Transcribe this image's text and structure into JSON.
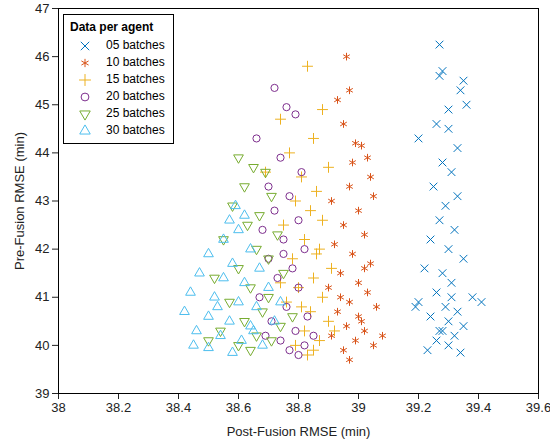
{
  "chart_data": {
    "type": "scatter",
    "x_label": "Post-Fusion RMSE (min)",
    "y_label": "Pre-Fusion RMSE (min)",
    "xlim": [
      38,
      39.6
    ],
    "xticks": [
      38,
      38.2,
      38.4,
      38.6,
      38.8,
      39,
      39.2,
      39.4,
      39.6
    ],
    "ylim": [
      39,
      47
    ],
    "yticks": [
      39,
      40,
      41,
      42,
      43,
      44,
      45,
      46,
      47
    ],
    "grid": false,
    "legend": "top-left",
    "legend_title": "Data per agent",
    "series": [
      {
        "name": "05 batches",
        "color": "#0072BD",
        "marker": "x",
        "values": [
          [
            39.27,
            46.25
          ],
          [
            39.28,
            45.7
          ],
          [
            39.27,
            45.6
          ],
          [
            39.35,
            45.5
          ],
          [
            39.34,
            45.3
          ],
          [
            39.36,
            45.0
          ],
          [
            39.3,
            44.9
          ],
          [
            39.26,
            44.6
          ],
          [
            39.3,
            44.5
          ],
          [
            39.2,
            44.3
          ],
          [
            39.33,
            44.1
          ],
          [
            39.28,
            43.8
          ],
          [
            39.31,
            43.6
          ],
          [
            39.25,
            43.3
          ],
          [
            39.33,
            43.1
          ],
          [
            39.29,
            42.9
          ],
          [
            39.27,
            42.6
          ],
          [
            39.32,
            42.4
          ],
          [
            39.24,
            42.2
          ],
          [
            39.3,
            42.0
          ],
          [
            39.35,
            41.8
          ],
          [
            39.22,
            41.6
          ],
          [
            39.28,
            41.5
          ],
          [
            39.31,
            41.3
          ],
          [
            39.26,
            41.1
          ],
          [
            39.38,
            41.0
          ],
          [
            39.2,
            40.9
          ],
          [
            39.29,
            40.8
          ],
          [
            39.33,
            40.7
          ],
          [
            39.24,
            40.6
          ],
          [
            39.3,
            40.5
          ],
          [
            39.35,
            40.4
          ],
          [
            39.27,
            40.3
          ],
          [
            39.19,
            40.8
          ],
          [
            39.41,
            40.9
          ],
          [
            39.32,
            40.2
          ],
          [
            39.26,
            40.1
          ],
          [
            39.3,
            40.0
          ],
          [
            39.23,
            39.9
          ],
          [
            39.34,
            39.85
          ],
          [
            39.28,
            40.3
          ],
          [
            39.31,
            41.0
          ]
        ]
      },
      {
        "name": "10 batches",
        "color": "#D95319",
        "marker": "asterisk",
        "values": [
          [
            38.96,
            46.0
          ],
          [
            38.97,
            45.3
          ],
          [
            38.93,
            45.1
          ],
          [
            38.95,
            44.6
          ],
          [
            38.99,
            44.2
          ],
          [
            39.01,
            44.15
          ],
          [
            39.03,
            43.9
          ],
          [
            39.04,
            43.5
          ],
          [
            39.05,
            43.1
          ],
          [
            38.98,
            43.8
          ],
          [
            38.97,
            43.3
          ],
          [
            38.91,
            43.0
          ],
          [
            39.0,
            42.8
          ],
          [
            38.95,
            42.5
          ],
          [
            39.02,
            42.3
          ],
          [
            38.92,
            42.1
          ],
          [
            38.98,
            41.9
          ],
          [
            39.04,
            41.7
          ],
          [
            38.94,
            41.5
          ],
          [
            39.0,
            41.3
          ],
          [
            38.9,
            41.2
          ],
          [
            39.03,
            41.1
          ],
          [
            38.97,
            40.9
          ],
          [
            39.06,
            40.8
          ],
          [
            38.93,
            40.7
          ],
          [
            39.0,
            40.6
          ],
          [
            38.96,
            40.4
          ],
          [
            39.02,
            40.3
          ],
          [
            38.91,
            40.2
          ],
          [
            38.99,
            40.1
          ],
          [
            39.05,
            40.0
          ],
          [
            38.95,
            39.9
          ],
          [
            39.08,
            40.2
          ],
          [
            38.97,
            39.7
          ],
          [
            39.01,
            40.5
          ],
          [
            38.94,
            41.0
          ],
          [
            39.02,
            41.6
          ]
        ]
      },
      {
        "name": "15 batches",
        "color": "#EDB120",
        "marker": "plus",
        "values": [
          [
            38.83,
            45.8
          ],
          [
            38.88,
            44.9
          ],
          [
            38.74,
            44.7
          ],
          [
            38.85,
            44.3
          ],
          [
            38.77,
            44.0
          ],
          [
            38.9,
            43.7
          ],
          [
            38.69,
            43.6
          ],
          [
            38.81,
            43.5
          ],
          [
            38.86,
            43.2
          ],
          [
            38.79,
            43.0
          ],
          [
            38.84,
            42.8
          ],
          [
            38.88,
            42.6
          ],
          [
            38.75,
            42.5
          ],
          [
            38.82,
            42.2
          ],
          [
            38.87,
            42.0
          ],
          [
            38.78,
            41.8
          ],
          [
            38.91,
            41.6
          ],
          [
            38.85,
            41.4
          ],
          [
            38.8,
            41.2
          ],
          [
            38.88,
            41.0
          ],
          [
            38.76,
            40.9
          ],
          [
            38.84,
            40.7
          ],
          [
            38.9,
            40.5
          ],
          [
            38.82,
            40.3
          ],
          [
            38.87,
            40.1
          ],
          [
            38.79,
            40.0
          ],
          [
            38.85,
            39.9
          ],
          [
            38.92,
            40.3
          ],
          [
            38.81,
            40.8
          ],
          [
            38.86,
            41.9
          ],
          [
            38.74,
            41.3
          ],
          [
            38.83,
            39.8
          ]
        ]
      },
      {
        "name": "20 batches",
        "color": "#7E2F8E",
        "marker": "circle",
        "values": [
          [
            38.72,
            45.35
          ],
          [
            38.76,
            44.95
          ],
          [
            38.79,
            44.8
          ],
          [
            38.66,
            44.3
          ],
          [
            38.74,
            43.9
          ],
          [
            38.81,
            43.6
          ],
          [
            38.7,
            43.3
          ],
          [
            38.77,
            43.1
          ],
          [
            38.72,
            42.8
          ],
          [
            38.8,
            42.6
          ],
          [
            38.68,
            42.4
          ],
          [
            38.75,
            42.2
          ],
          [
            38.82,
            42.0
          ],
          [
            38.7,
            41.8
          ],
          [
            38.78,
            41.6
          ],
          [
            38.73,
            41.4
          ],
          [
            38.8,
            41.2
          ],
          [
            38.67,
            41.0
          ],
          [
            38.76,
            40.8
          ],
          [
            38.83,
            40.6
          ],
          [
            38.71,
            40.5
          ],
          [
            38.79,
            40.3
          ],
          [
            38.74,
            40.1
          ],
          [
            38.82,
            40.0
          ],
          [
            38.77,
            39.9
          ],
          [
            38.85,
            40.2
          ],
          [
            38.69,
            40.2
          ],
          [
            38.8,
            39.8
          ],
          [
            38.75,
            41.9
          ]
        ]
      },
      {
        "name": "25 batches",
        "color": "#77AC30",
        "marker": "triangle-down",
        "values": [
          [
            38.6,
            43.9
          ],
          [
            38.65,
            43.7
          ],
          [
            38.69,
            43.6
          ],
          [
            38.62,
            43.3
          ],
          [
            38.71,
            43.1
          ],
          [
            38.58,
            42.9
          ],
          [
            38.67,
            42.7
          ],
          [
            38.63,
            42.5
          ],
          [
            38.73,
            42.3
          ],
          [
            38.55,
            42.2
          ],
          [
            38.66,
            42.0
          ],
          [
            38.7,
            41.8
          ],
          [
            38.6,
            41.6
          ],
          [
            38.75,
            41.5
          ],
          [
            38.52,
            41.4
          ],
          [
            38.64,
            41.2
          ],
          [
            38.7,
            41.0
          ],
          [
            38.57,
            40.9
          ],
          [
            38.68,
            40.7
          ],
          [
            38.62,
            40.5
          ],
          [
            38.74,
            40.4
          ],
          [
            38.54,
            40.3
          ],
          [
            38.66,
            40.2
          ],
          [
            38.6,
            40.0
          ],
          [
            38.71,
            40.1
          ],
          [
            38.78,
            40.6
          ],
          [
            38.5,
            40.1
          ],
          [
            38.64,
            39.9
          ]
        ]
      },
      {
        "name": "30 batches",
        "color": "#4DBEEE",
        "marker": "triangle",
        "values": [
          [
            38.59,
            42.9
          ],
          [
            38.62,
            42.7
          ],
          [
            38.57,
            42.6
          ],
          [
            38.6,
            42.4
          ],
          [
            38.55,
            42.2
          ],
          [
            38.64,
            42.0
          ],
          [
            38.5,
            41.9
          ],
          [
            38.58,
            41.7
          ],
          [
            38.67,
            41.6
          ],
          [
            38.47,
            41.5
          ],
          [
            38.55,
            41.4
          ],
          [
            38.62,
            41.3
          ],
          [
            38.7,
            41.2
          ],
          [
            38.44,
            41.1
          ],
          [
            38.52,
            41.0
          ],
          [
            38.6,
            40.9
          ],
          [
            38.66,
            40.8
          ],
          [
            38.42,
            40.7
          ],
          [
            38.5,
            40.6
          ],
          [
            38.57,
            40.5
          ],
          [
            38.64,
            40.4
          ],
          [
            38.72,
            40.5
          ],
          [
            38.46,
            40.3
          ],
          [
            38.54,
            40.2
          ],
          [
            38.61,
            40.1
          ],
          [
            38.68,
            40.0
          ],
          [
            38.5,
            39.95
          ],
          [
            38.58,
            39.85
          ],
          [
            38.65,
            40.3
          ],
          [
            38.53,
            40.8
          ],
          [
            38.45,
            40.0
          ],
          [
            38.74,
            40.9
          ]
        ]
      }
    ]
  }
}
